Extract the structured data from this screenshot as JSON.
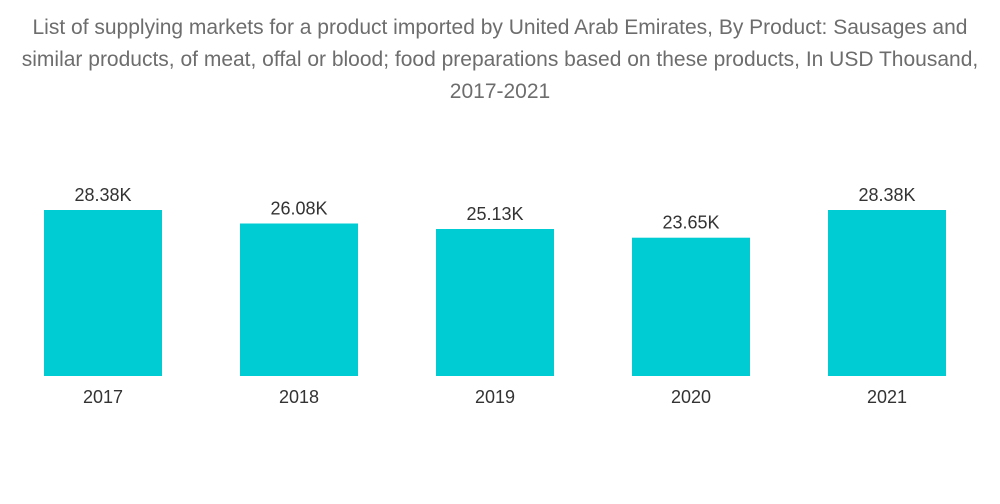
{
  "chart_data": {
    "type": "bar",
    "title": "List of supplying markets for a product imported by United Arab Emirates, By Product: Sausages and similar products, of meat, offal or blood; food preparations based on these products, In USD Thousand, 2017-2021",
    "categories": [
      "2017",
      "2018",
      "2019",
      "2020",
      "2021"
    ],
    "values": [
      28.38,
      26.08,
      25.13,
      23.65,
      28.38
    ],
    "value_labels": [
      "28.38K",
      "26.08K",
      "25.13K",
      "23.65K",
      "28.38K"
    ],
    "xlabel": "",
    "ylabel": "",
    "ylim": [
      0,
      28.38
    ],
    "grid": false,
    "legend": "none",
    "colors": {
      "bar": "#00ccd3",
      "title": "#6d6d6d",
      "label": "#333333"
    }
  }
}
